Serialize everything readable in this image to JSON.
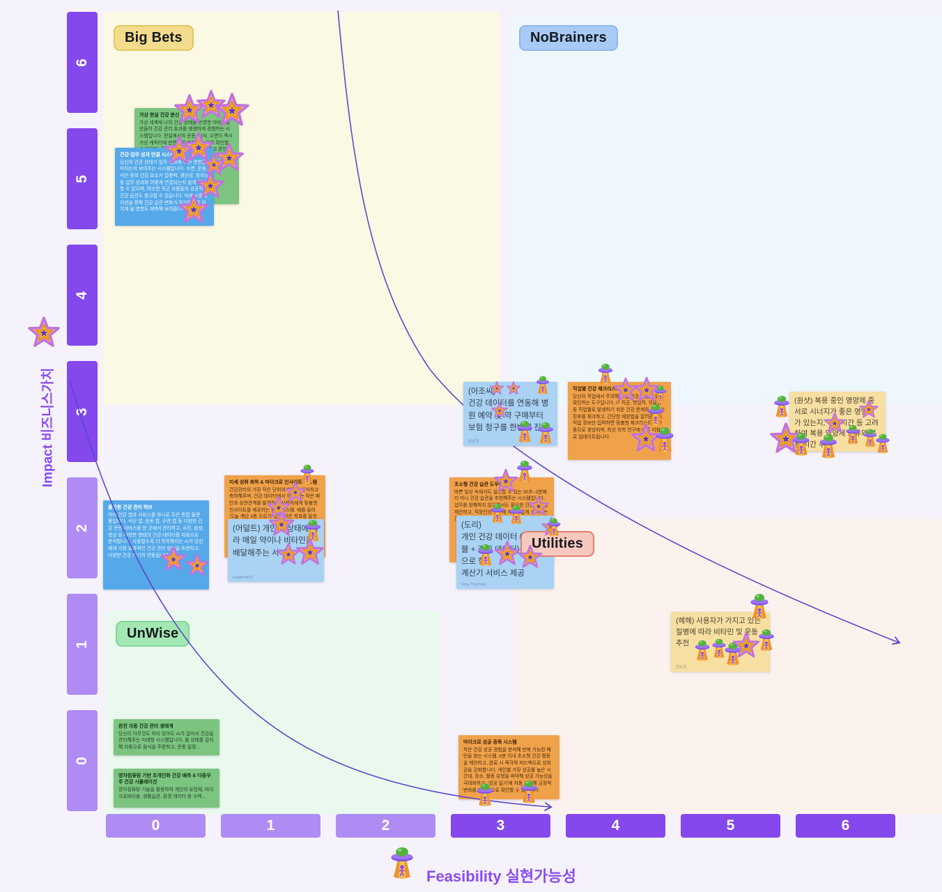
{
  "quadrant_labels": {
    "big_bets": "Big Bets",
    "no_brainers": "NoBrainers",
    "unwise": "UnWise",
    "utilities": "Utilities"
  },
  "axes": {
    "y_label": "Impact 비즈니스가치",
    "y_ticks": [
      "6",
      "5",
      "4",
      "3",
      "2",
      "1",
      "0"
    ],
    "x_label": "Feasibility 실현가능성",
    "x_ticks": [
      "0",
      "1",
      "2",
      "3",
      "4",
      "5",
      "6"
    ]
  },
  "icons": {
    "impact_axis_marker": "star-sticker",
    "feasibility_axis_marker": "ufo-sticker",
    "vote_star": "star-sticker",
    "vote_ufo": "ufo-sticker"
  },
  "colors": {
    "axis_dark": "#8448EC",
    "axis_light": "#AE8CF4",
    "curve": "#5B49C9",
    "big_bets_bg": "#FBF8E4",
    "no_brainers_bg": "#EFF7FE",
    "unwise_bg": "#E9F9EE",
    "utilities_bg": "#FBF2EE",
    "note_green": "#7CC480",
    "note_blue_dark": "#55A9E8",
    "note_blue_light": "#A9D2F3",
    "note_orange": "#F0A24B",
    "note_yellow": "#F7DFA2"
  },
  "notes": [
    {
      "title": "가상 현실 건강 분신",
      "body": "가상 세계에 나의 건강 상태를 반영한 아바타를 만들어 건강 관리 효과를 생생하게 경험하는 시스템입니다. 현실에서의 운동, 식사, 수면이 즉시 가상 캐릭터에 반영되어 변화를 눈으로 확인할 수 있으며, 목표를 달성하면 보상을 받고 본인의 건강 습관이 미래에 미칠 영향도 예측해 보여줍니다."
    },
    {
      "title": "건강-업무 성과 연결 시스템",
      "body": "당신의 건강 상태가 업무 성과에 어떤 영향을 미치는지 보여주는 시스템입니다. 수면, 운동, 식단 등의 건강 요소가 집중력, 생산성, 창의성 등 업무 성과와 어떻게 연결되는지 쉽게 확인할 수 있으며, 비슷한 직군 사람들의 성공적인 건강 습관도 참고할 수 있습니다. 미래 시뮬레이션을 통해 건강 습관 변화가 장기적으로 미치게 될 영향도 예측해 보여줍니다."
    },
    {
      "title": "올인원 건강 관리 허브",
      "body": "여러 건강 앱과 서비스를 하나로 모은 통합 플랫폼입니다. 식단 앱, 운동 앱, 수면 앱 등 다양한 건강 관련 서비스를 한 곳에서 관리하고, 사진, 음성, 영상 등 다양한 형태의 건강 데이터를 자동으로 분석합니다. 사용할수록 더 똑똑해지는 AI가 당신에게 가장 효과적인 건강 관리 방법을 추천하고, 다양한 건강 기기와 연동됩니다."
    },
    {
      "title": "",
      "body": "(아조씨)\n건강 데이터를 연동해 병원 예약 및 약 구매부터 보험 청구를 한번에 진행",
      "author": "성상혁"
    },
    {
      "title": "직업별 건강 체크리스트",
      "body": "당신의 직업에서 주의해야 할 건강 위험을 쉽게 확인하는 도구입니다. IT 직군, 영업직, 의료인 등 직업별로 발생하기 쉬운 건강 문제와 그 초기 징후를 체크하고, 간단한 예방법을 알려줍니다. 직업 정보만 입력하면 맞춤형 체크리스트가 자동으로 생성되며, 최신 의학 연구에 따른 지침으로 업데이트됩니다."
    },
    {
      "title": "미세 성취 축하 & 마이크로 인사이트 시스템",
      "body": "건강관리의 가장 작은 단위의 행동도 인식하고 축하해주며, 건강 데이터에서 의미있는 작은 패턴과 상관관계를 발견하여 사용자에게 맞춤형 인사이트를 제공하는 통합 시스템. 예를 들어 '오늘 계단 3층 오르기' 같은 작은 목표를 달성하..."
    },
    {
      "title": "",
      "body": "(어덜트) 개인의 상태에 따라 매일 약이나 비타민을 배달해주는 서비스",
      "author": "sungmi5617"
    },
    {
      "title": "초소형 건강 습관 도우미",
      "body": "바쁜 일상 속에서도 실천할 수 있는 30초~2분짜리 미니 건강 습관을 추천해주는 시스템입니다. 업무를 방해하지 않으면서도 필요한 건강 행동을 제안하고, 직장인의 일상에 자연스럽게 스며드는 건강 루틴을 만들어 줍니다."
    },
    {
      "title": "",
      "body": "(도리)\n개인 건강 데이터 (웨어러블 + 검진 데이터)를 기반으로 한\n계산기 서비스 제공",
      "author": "Uma Thurman"
    },
    {
      "title": "",
      "body": "(원샷) 복용 중인 영양제 중 서로 시너지가 좋은 영양제가 있는지, 식사시간 등 고려하여 복용 영양제 종류와 복용 시간 추천"
    },
    {
      "title": "",
      "body": "(헤헤) 사용자가 가지고 있는 질병에 따라 비타민 및 운동 추천",
      "author": "청도희"
    },
    {
      "title": "완전 자동 건강 관리 생태계",
      "body": "당신이 아무것도 하지 않아도 AI가 알아서 건강을 관리해주는 미래형 시스템입니다. 몸 상태를 감지해 자동으로 음식을 주문하고, 운동 일정..."
    },
    {
      "title": "양자컴퓨팅 기반 초개인화 건강 예측 & 다중우주 건강 시뮬레이션",
      "body": "양자컴퓨팅 기술을 활용하여 개인의 유전체, 마이크로바이옴, 생활습관, 환경 데이터 등 수백..."
    },
    {
      "title": "마이크로 성공 증폭 시스템",
      "body": "작은 건강 성공 경험을 분석해 반복 가능한 패턴을 찾는 시스템. 5분 이내 초소형 건강 활동을 제안하고, 완료 시 즉각적 피드백으로 성취감을 강화합니다. 개인별 가장 성공률 높은 시간대, 장소, 활동 유형을 파악해 성공 가능성을 극대화하고, '성공 일기'에 자동 기록해 긍정적 변화를 지속적으로 확인할 수 있습니다."
    }
  ]
}
